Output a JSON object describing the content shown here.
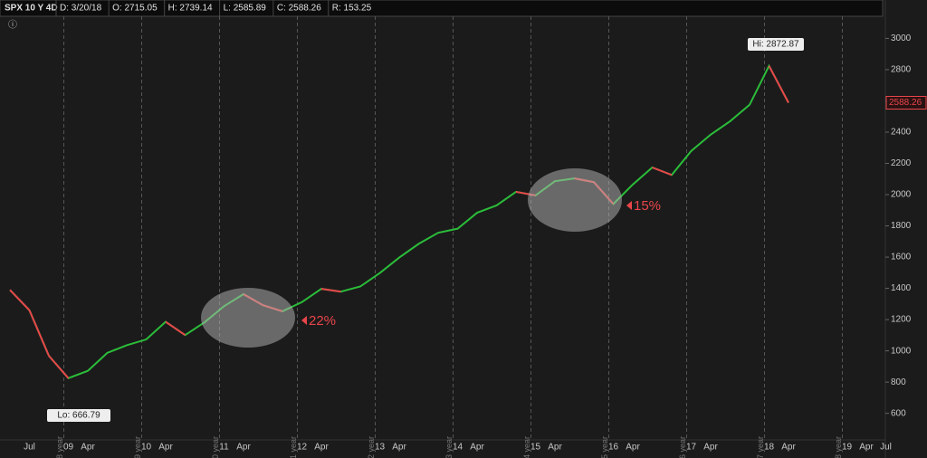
{
  "header": {
    "symbol": "SPX 10 Y 4D",
    "fields": [
      "D: 3/20/18",
      "O: 2715.05",
      "H: 2739.14",
      "L: 2585.89",
      "C: 2588.26",
      "R: 153.25"
    ]
  },
  "chart_data": {
    "type": "line",
    "categories": [
      null,
      "Jul",
      null,
      "09",
      "Apr",
      null,
      null,
      "10",
      "Apr",
      null,
      null,
      "11",
      "Apr",
      null,
      null,
      "12",
      "Apr",
      null,
      null,
      "13",
      "Apr",
      null,
      null,
      "14",
      "Apr",
      null,
      null,
      "15",
      "Apr",
      null,
      null,
      "16",
      "Apr",
      null,
      null,
      "17",
      "Apr",
      null,
      null,
      "18",
      "Apr",
      null,
      null,
      "19",
      "Apr",
      "Jul"
    ],
    "series": [
      {
        "values": [
          1390,
          1260,
          968,
          825,
          872,
          987,
          1036,
          1073,
          1186,
          1101,
          1183,
          1286,
          1363,
          1292,
          1253,
          1312,
          1397,
          1379,
          1412,
          1498,
          1597,
          1685,
          1756,
          1782,
          1884,
          1931,
          2018,
          1995,
          2086,
          2104,
          2080,
          1940,
          2065,
          2174,
          2126,
          2279,
          2384,
          2470,
          2575,
          2824,
          2588.26,
          null,
          null,
          null,
          null,
          null
        ],
        "up_color": "#2bbd3a",
        "down_color": "#e8454a"
      }
    ],
    "ylim": [
      430,
      3130
    ],
    "yticks": [
      600,
      800,
      1000,
      1200,
      1400,
      1600,
      1800,
      2000,
      2200,
      2400,
      2600,
      2800,
      3000
    ],
    "year_labels": [
      "2008 year",
      "2009 year",
      "2010 year",
      "2011 year",
      "2012 year",
      "2013 year",
      "2014 year",
      "2015 year",
      "2016 year",
      "2017 year",
      "2018 year"
    ],
    "last_price": 2588.26,
    "annotations": {
      "hi": "Hi: 2872.87",
      "lo": "Lo: 666.79",
      "drop1": "22%",
      "drop2": "15%"
    }
  }
}
